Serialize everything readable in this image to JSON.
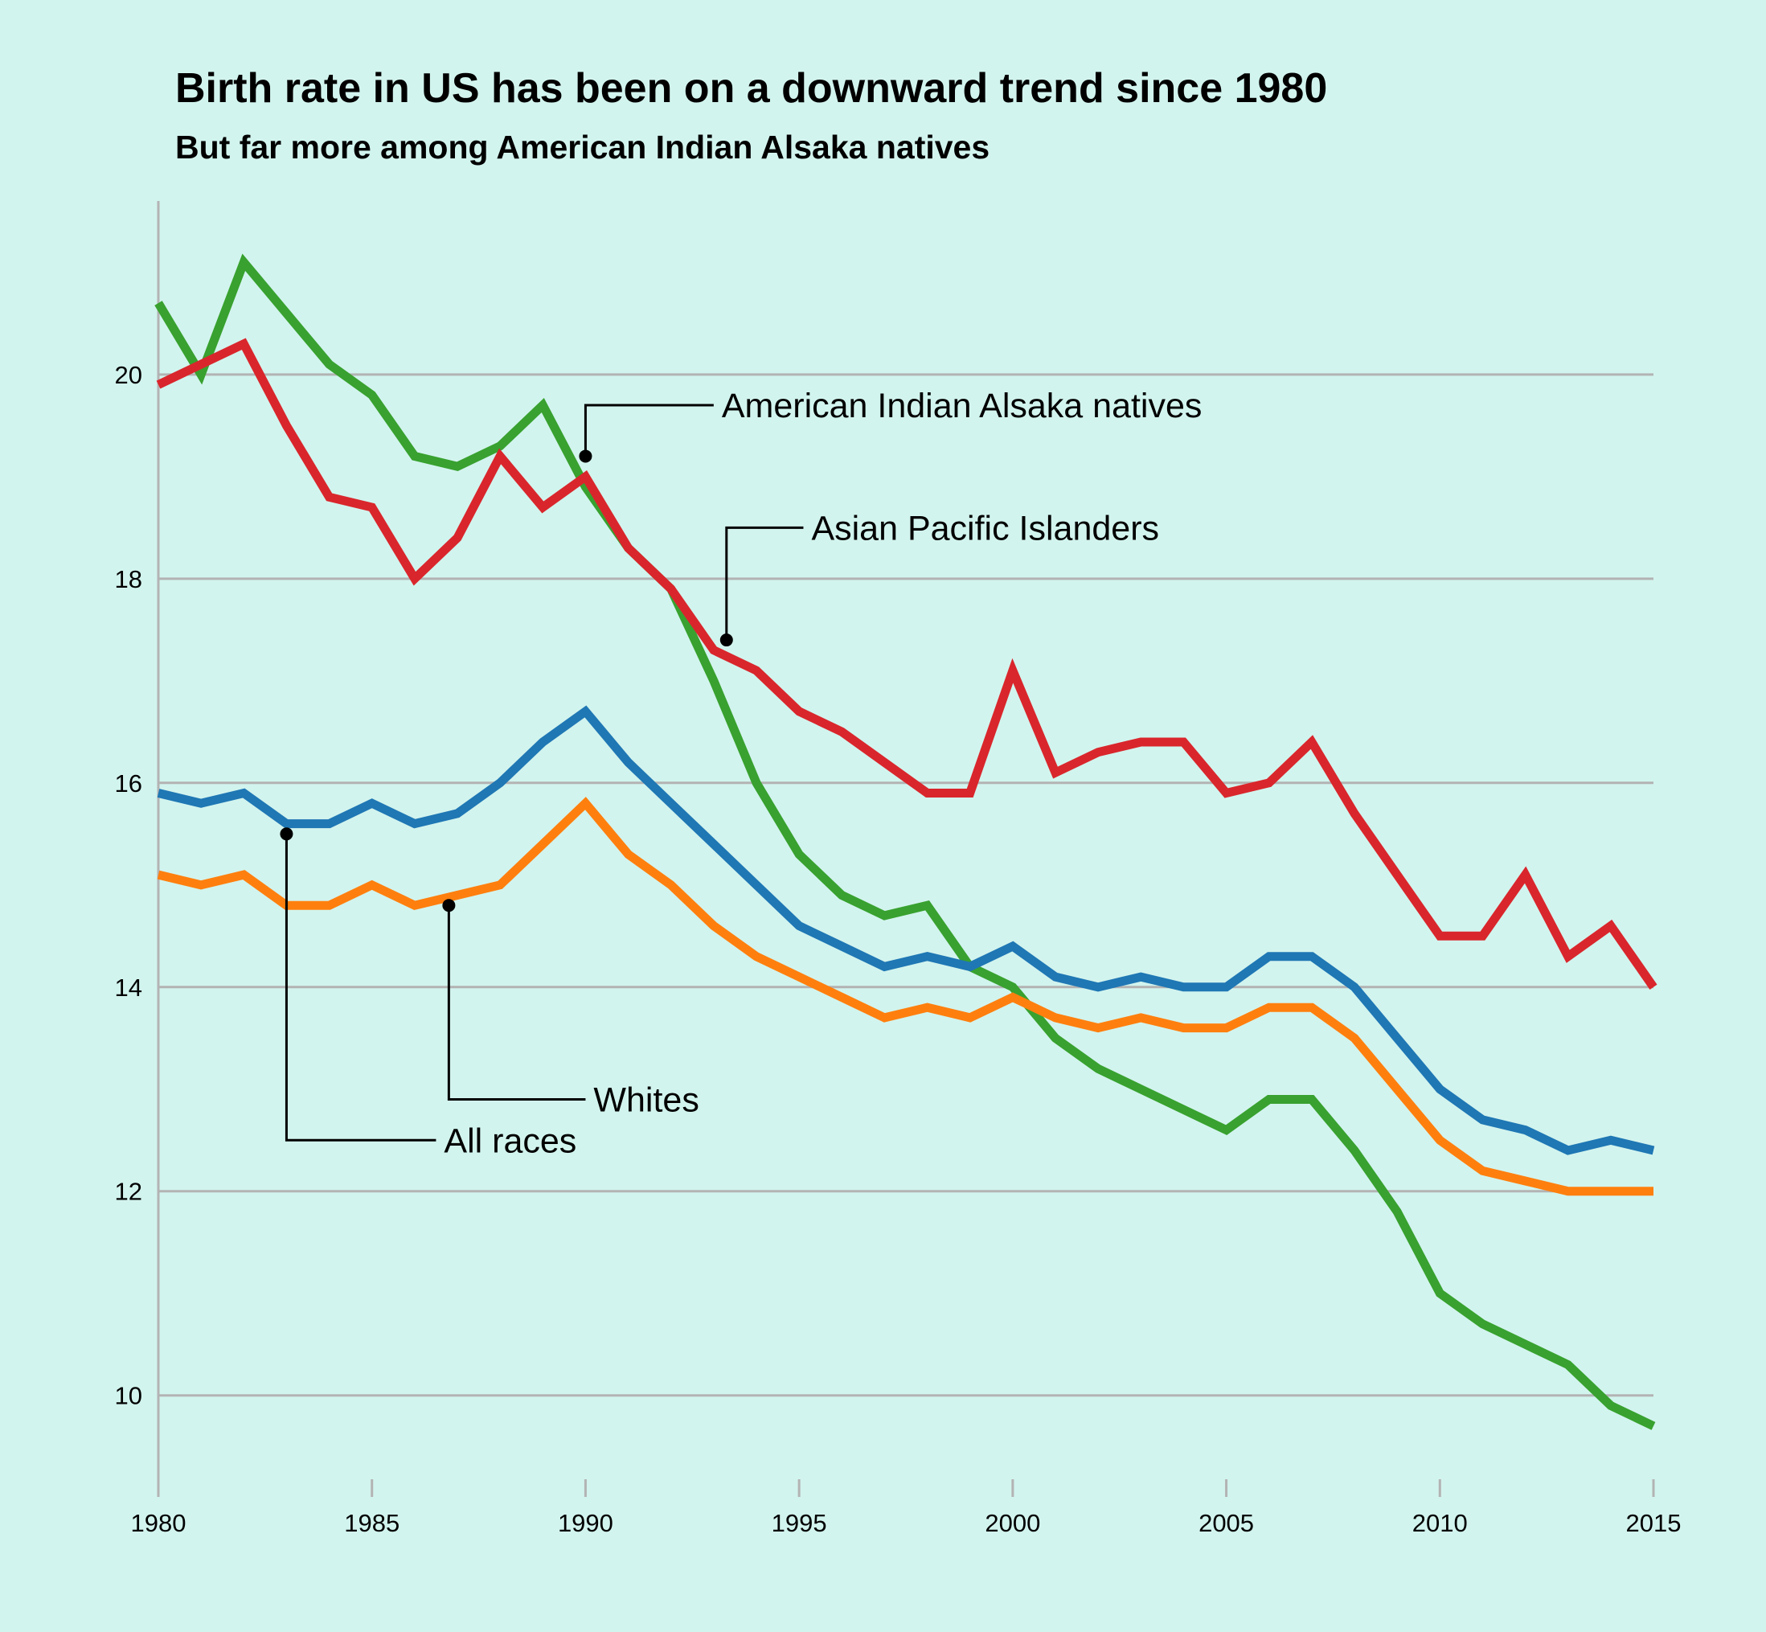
{
  "chart_data": {
    "type": "line",
    "title": "Birth rate in US has been on  a downward trend since 1980",
    "subtitle": "But far more among American Indian Alsaka natives",
    "xlabel": "",
    "ylabel": "",
    "xlim": [
      1980,
      2015
    ],
    "ylim": [
      9.1,
      21.7
    ],
    "x_ticks": [
      1980,
      1985,
      1990,
      1995,
      2000,
      2005,
      2010,
      2015
    ],
    "y_ticks": [
      10,
      12,
      14,
      16,
      18,
      20
    ],
    "grid": "horizontal",
    "legend": "none (direct labels)",
    "x": [
      1980,
      1981,
      1982,
      1983,
      1984,
      1985,
      1986,
      1987,
      1988,
      1989,
      1990,
      1991,
      1992,
      1993,
      1994,
      1995,
      1996,
      1997,
      1998,
      1999,
      2000,
      2001,
      2002,
      2003,
      2004,
      2005,
      2006,
      2007,
      2008,
      2009,
      2010,
      2011,
      2012,
      2013,
      2014,
      2015
    ],
    "series": [
      {
        "name": "American Indian Alsaka natives",
        "color": "#38a12f",
        "values": [
          20.7,
          20.0,
          21.1,
          20.6,
          20.1,
          19.8,
          19.2,
          19.1,
          19.3,
          19.7,
          18.9,
          18.3,
          17.9,
          17.0,
          16.0,
          15.3,
          14.9,
          14.7,
          14.8,
          14.2,
          14.0,
          13.5,
          13.2,
          13.0,
          12.8,
          12.6,
          12.9,
          12.9,
          12.4,
          11.8,
          11.0,
          10.7,
          10.5,
          10.3,
          9.9,
          9.7
        ]
      },
      {
        "name": "Asian Pacific Islanders",
        "color": "#d9262c",
        "values": [
          19.9,
          20.1,
          20.3,
          19.5,
          18.8,
          18.7,
          18.0,
          18.4,
          19.2,
          18.7,
          19.0,
          18.3,
          17.9,
          17.3,
          17.1,
          16.7,
          16.5,
          16.2,
          15.9,
          15.9,
          17.1,
          16.1,
          16.3,
          16.4,
          16.4,
          15.9,
          16.0,
          16.4,
          15.7,
          15.1,
          14.5,
          14.5,
          15.1,
          14.3,
          14.6,
          14.0
        ]
      },
      {
        "name": "All races",
        "color": "#1f77b4",
        "values": [
          15.9,
          15.8,
          15.9,
          15.6,
          15.6,
          15.8,
          15.6,
          15.7,
          16.0,
          16.4,
          16.7,
          16.2,
          15.8,
          15.4,
          15.0,
          14.6,
          14.4,
          14.2,
          14.3,
          14.2,
          14.4,
          14.1,
          14.0,
          14.1,
          14.0,
          14.0,
          14.3,
          14.3,
          14.0,
          13.5,
          13.0,
          12.7,
          12.6,
          12.4,
          12.5,
          12.4
        ]
      },
      {
        "name": "Whites",
        "color": "#ff7f0e",
        "values": [
          15.1,
          15.0,
          15.1,
          14.8,
          14.8,
          15.0,
          14.8,
          14.9,
          15.0,
          15.4,
          15.8,
          15.3,
          15.0,
          14.6,
          14.3,
          14.1,
          13.9,
          13.7,
          13.8,
          13.7,
          13.9,
          13.7,
          13.6,
          13.7,
          13.6,
          13.6,
          13.8,
          13.8,
          13.5,
          13.0,
          12.5,
          12.2,
          12.1,
          12.0,
          12.0,
          12.0
        ]
      }
    ],
    "annotations": [
      {
        "text": "American Indian Alsaka natives",
        "point": [
          1990,
          19.2
        ],
        "label_at": [
          1993,
          19.7
        ]
      },
      {
        "text": "Asian Pacific Islanders",
        "point": [
          1993.3,
          17.4
        ],
        "label_at": [
          1995.1,
          18.5
        ]
      },
      {
        "text": "Whites",
        "point": [
          1986.8,
          14.8
        ],
        "label_at": [
          1990,
          12.9
        ]
      },
      {
        "text": "All races",
        "point": [
          1983,
          15.5
        ],
        "label_at": [
          1986.5,
          12.5
        ]
      }
    ]
  }
}
